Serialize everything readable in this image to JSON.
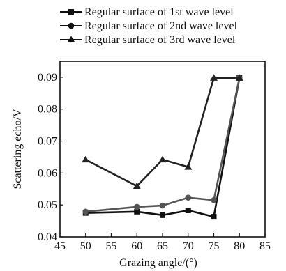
{
  "chart_data": {
    "type": "line",
    "xlabel": "Grazing angle/(°)",
    "ylabel": "Scattering echo/V",
    "xlim": [
      45,
      85
    ],
    "ylim": [
      0.04,
      0.095
    ],
    "x_ticks": [
      "45",
      "50",
      "55",
      "60",
      "65",
      "70",
      "75",
      "80",
      "85"
    ],
    "y_ticks": [
      "0.04",
      "0.05",
      "0.06",
      "0.07",
      "0.08",
      "0.09"
    ],
    "x_tick_values": [
      45,
      50,
      55,
      60,
      65,
      70,
      75,
      80,
      85
    ],
    "y_tick_values": [
      0.04,
      0.05,
      0.06,
      0.07,
      0.08,
      0.09
    ],
    "grid": false,
    "legend_position": "top, outside plot",
    "x": [
      50,
      60,
      65,
      70,
      75,
      80
    ],
    "series": [
      {
        "name": "Regular surface of 1st wave level",
        "marker": "square",
        "color": "#111111",
        "values": [
          0.0475,
          0.0479,
          0.0468,
          0.0483,
          0.0463,
          0.0898
        ]
      },
      {
        "name": "Regular surface of 2nd wave level",
        "marker": "circle",
        "color": "#555555",
        "values": [
          0.0479,
          0.0494,
          0.0498,
          0.0523,
          0.0515,
          0.0898
        ]
      },
      {
        "name": "Regular surface of 3rd wave level",
        "marker": "triangle",
        "color": "#222222",
        "values": [
          0.0642,
          0.0559,
          0.0642,
          0.0619,
          0.0898,
          0.0898
        ]
      }
    ]
  }
}
